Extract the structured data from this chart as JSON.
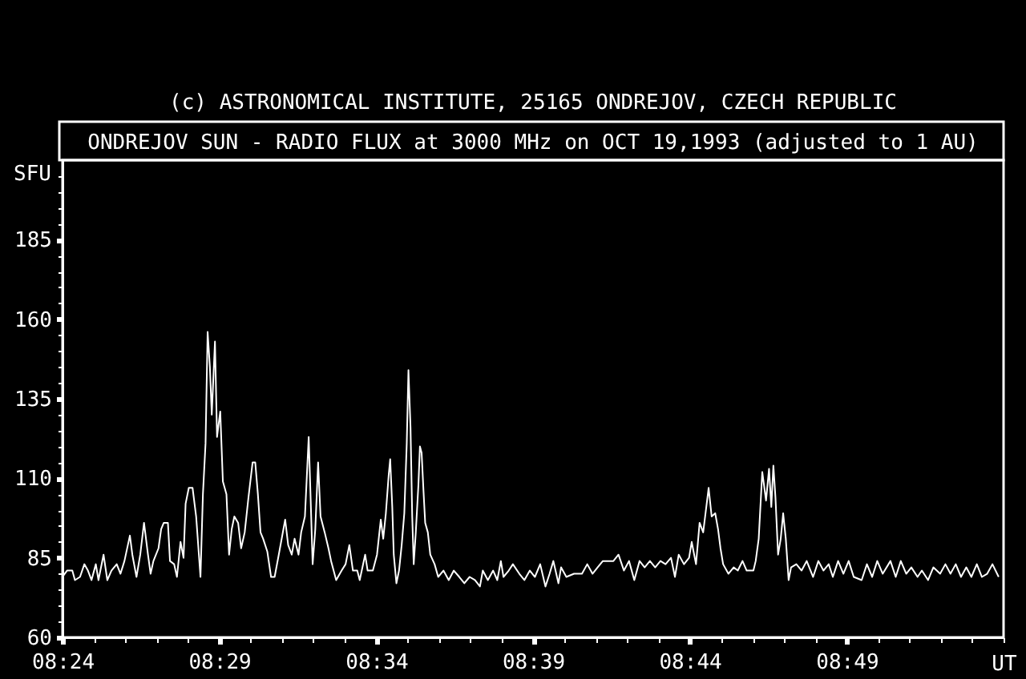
{
  "chart_data": {
    "type": "line",
    "title": "ONDREJOV SUN - RADIO FLUX at 3000 MHz on OCT 19,1993 (adjusted to 1 AU)",
    "annotations": [
      "(c) ASTRONOMICAL INSTITUTE, 25165 ONDREJOV, CZECH REPUBLIC"
    ],
    "xlabel": "UT",
    "ylabel": "SFU",
    "x": [
      8.4,
      8.4024,
      8.4052,
      8.4066,
      8.4093,
      8.4116,
      8.4135,
      8.4154,
      8.4177,
      8.4191,
      8.4218,
      8.4238,
      8.426,
      8.4288,
      8.4308,
      8.4329,
      8.4358,
      8.4371,
      8.4393,
      8.4413,
      8.4433,
      8.4454,
      8.4468,
      8.4483,
      8.451,
      8.4524,
      8.4538,
      8.456,
      8.4571,
      8.4593,
      8.4608,
      8.4627,
      8.4643,
      8.4654,
      8.4671,
      8.4691,
      8.471,
      8.4733,
      8.4746,
      8.476,
      8.4771,
      8.4783,
      8.4793,
      8.481,
      8.4821,
      8.4838,
      8.4852,
      8.4871,
      8.4885,
      8.4899,
      8.4913,
      8.4933,
      8.4949,
      8.4968,
      8.4988,
      8.501,
      8.5024,
      8.5038,
      8.5052,
      8.5066,
      8.5088,
      8.5108,
      8.5127,
      8.5149,
      8.5183,
      8.5199,
      8.5218,
      8.5233,
      8.5254,
      8.5268,
      8.5288,
      8.5308,
      8.5316,
      8.5329,
      8.5343,
      8.5358,
      8.5371,
      8.5393,
      8.5413,
      8.5427,
      8.5454,
      8.5483,
      8.5504,
      8.5524,
      8.5543,
      8.5566,
      8.5579,
      8.5608,
      8.5621,
      8.5649,
      8.5671,
      8.5691,
      8.5704,
      8.5718,
      8.5733,
      8.5741,
      8.5752,
      8.576,
      8.5774,
      8.5788,
      8.5802,
      8.5816,
      8.5829,
      8.5838,
      8.5849,
      8.5858,
      8.5866,
      8.5877,
      8.5891,
      8.5899,
      8.5908,
      8.5918,
      8.5927,
      8.5941,
      8.5954,
      8.5977,
      8.5996,
      8.6024,
      8.6052,
      8.6079,
      8.6108,
      8.6135,
      8.6163,
      8.6191,
      8.6218,
      8.6233,
      8.626,
      8.6288,
      8.631,
      8.6329,
      8.6343,
      8.6371,
      8.6393,
      8.6427,
      8.6454,
      8.6483,
      8.651,
      8.6538,
      8.6566,
      8.6588,
      8.6608,
      8.6635,
      8.6649,
      8.6677,
      8.6718,
      8.676,
      8.6788,
      8.6816,
      8.6843,
      8.6871,
      8.6899,
      8.6927,
      8.6954,
      8.6983,
      8.701,
      8.7038,
      8.7066,
      8.7093,
      8.7121,
      8.7149,
      8.7177,
      8.7204,
      8.7233,
      8.7254,
      8.7274,
      8.7302,
      8.7329,
      8.7343,
      8.7366,
      8.7385,
      8.7404,
      8.7433,
      8.7449,
      8.7468,
      8.7483,
      8.7496,
      8.751,
      8.7538,
      8.7566,
      8.7588,
      8.7613,
      8.7635,
      8.7671,
      8.7683,
      8.7699,
      8.7718,
      8.7738,
      8.7754,
      8.7766,
      8.7777,
      8.7788,
      8.7802,
      8.7816,
      8.7829,
      8.7843,
      8.7858,
      8.7871,
      8.7899,
      8.7927,
      8.7954,
      8.7988,
      8.8016,
      8.8043,
      8.8071,
      8.8093,
      8.8121,
      8.8149,
      8.8177,
      8.8204,
      8.8246,
      8.8274,
      8.8302,
      8.8329,
      8.8358,
      8.8399,
      8.8427,
      8.8454,
      8.8483,
      8.851,
      8.8543,
      8.8566,
      8.8599,
      8.8627,
      8.8663,
      8.8691,
      8.8718,
      8.8746,
      8.8774,
      8.8802,
      8.8829,
      8.8858,
      8.8885,
      8.8913,
      8.8941,
      8.8974
    ],
    "series": [
      {
        "color": "#ffffff",
        "values": [
          79,
          81,
          81,
          78,
          79,
          83,
          81,
          78,
          83,
          78,
          86,
          78,
          81,
          83,
          80,
          84,
          92,
          86,
          79,
          86,
          96,
          86,
          80,
          84,
          88,
          94,
          96,
          96,
          84,
          83,
          79,
          90,
          85,
          102,
          107,
          107,
          98,
          79,
          105,
          121,
          156,
          145,
          130,
          153,
          123,
          131,
          109,
          105,
          86,
          94,
          98,
          96,
          88,
          93,
          104,
          115,
          115,
          105,
          93,
          91,
          87,
          79,
          79,
          86,
          97,
          89,
          86,
          91,
          86,
          93,
          98,
          123,
          108,
          83,
          94,
          115,
          98,
          93,
          88,
          84,
          78,
          81,
          83,
          89,
          81,
          81,
          78,
          86,
          81,
          81,
          86,
          97,
          91,
          99,
          111,
          116,
          101,
          86,
          77,
          81,
          89,
          99,
          121,
          144,
          126,
          98,
          83,
          93,
          108,
          120,
          118,
          106,
          96,
          93,
          86,
          83,
          79,
          81,
          78,
          81,
          79,
          77,
          79,
          78,
          76,
          81,
          78,
          81,
          78,
          84,
          79,
          81,
          83,
          80,
          78,
          81,
          79,
          83,
          76,
          80,
          84,
          77,
          82,
          79,
          80,
          80,
          83,
          80,
          82,
          84,
          84,
          84,
          86,
          81,
          84,
          78,
          84,
          82,
          84,
          82,
          84,
          83,
          85,
          79,
          86,
          83,
          85,
          90,
          83,
          96,
          93,
          107,
          98,
          99,
          94,
          88,
          83,
          80,
          82,
          81,
          84,
          81,
          81,
          84,
          91,
          112,
          103,
          113,
          101,
          114,
          104,
          86,
          91,
          99,
          91,
          78,
          82,
          83,
          81,
          84,
          79,
          84,
          81,
          83,
          79,
          84,
          80,
          84,
          79,
          78,
          83,
          79,
          84,
          80,
          84,
          79,
          84,
          80,
          82,
          79,
          81,
          78,
          82,
          80,
          83,
          80,
          83,
          79,
          82,
          79,
          83,
          79,
          80,
          83,
          79
        ]
      }
    ],
    "xlim": [
      8.4,
      8.9
    ],
    "ylim": [
      60,
      210
    ],
    "xticks": [
      {
        "value": 8.4,
        "label": "08:24"
      },
      {
        "value": 8.4167,
        "label": null
      },
      {
        "value": 8.4333,
        "label": null
      },
      {
        "value": 8.45,
        "label": null
      },
      {
        "value": 8.4667,
        "label": null
      },
      {
        "value": 8.4833,
        "label": "08:29"
      },
      {
        "value": 8.5,
        "label": null
      },
      {
        "value": 8.5167,
        "label": null
      },
      {
        "value": 8.5333,
        "label": null
      },
      {
        "value": 8.55,
        "label": null
      },
      {
        "value": 8.5667,
        "label": "08:34"
      },
      {
        "value": 8.5833,
        "label": null
      },
      {
        "value": 8.6,
        "label": null
      },
      {
        "value": 8.6167,
        "label": null
      },
      {
        "value": 8.6333,
        "label": null
      },
      {
        "value": 8.65,
        "label": "08:39"
      },
      {
        "value": 8.6667,
        "label": null
      },
      {
        "value": 8.6833,
        "label": null
      },
      {
        "value": 8.7,
        "label": null
      },
      {
        "value": 8.7167,
        "label": null
      },
      {
        "value": 8.7333,
        "label": "08:44"
      },
      {
        "value": 8.75,
        "label": null
      },
      {
        "value": 8.7667,
        "label": null
      },
      {
        "value": 8.7833,
        "label": null
      },
      {
        "value": 8.8,
        "label": null
      },
      {
        "value": 8.8167,
        "label": "08:49"
      },
      {
        "value": 8.8333,
        "label": null
      },
      {
        "value": 8.85,
        "label": null
      },
      {
        "value": 8.8667,
        "label": null
      },
      {
        "value": 8.8833,
        "label": null
      },
      {
        "value": 8.9,
        "label": null
      }
    ],
    "yticks": [
      60,
      {
        "value": 65,
        "label": null
      },
      {
        "value": 70,
        "label": null
      },
      {
        "value": 75,
        "label": null
      },
      {
        "value": 80,
        "label": null
      },
      85,
      {
        "value": 90,
        "label": null
      },
      {
        "value": 95,
        "label": null
      },
      {
        "value": 100,
        "label": null
      },
      {
        "value": 105,
        "label": null
      },
      110,
      {
        "value": 115,
        "label": null
      },
      {
        "value": 120,
        "label": null
      },
      {
        "value": 125,
        "label": null
      },
      {
        "value": 130,
        "label": null
      },
      135,
      {
        "value": 140,
        "label": null
      },
      {
        "value": 145,
        "label": null
      },
      {
        "value": 150,
        "label": null
      },
      {
        "value": 155,
        "label": null
      },
      160,
      {
        "value": 165,
        "label": null
      },
      {
        "value": 170,
        "label": null
      },
      {
        "value": 175,
        "label": null
      },
      {
        "value": 180,
        "label": null
      },
      185,
      {
        "value": 190,
        "label": null
      },
      {
        "value": 195,
        "label": null
      },
      {
        "value": 200,
        "label": null
      },
      {
        "value": 205,
        "label": null
      }
    ],
    "grid": false,
    "line_style": "solid"
  }
}
